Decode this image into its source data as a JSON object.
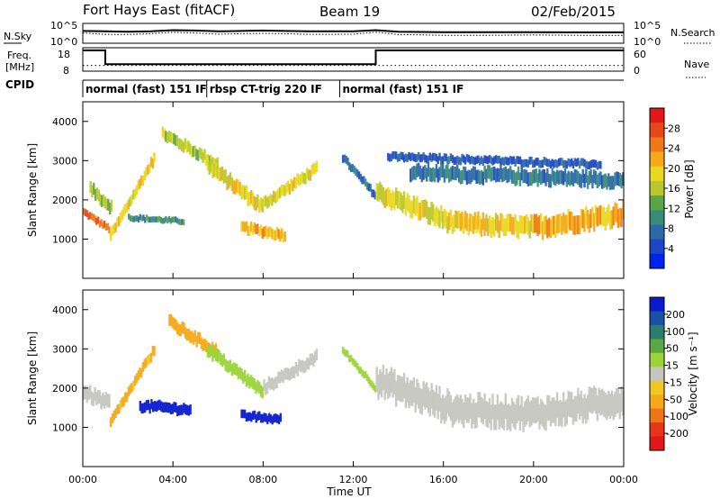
{
  "chart_data": [
    {
      "type": "line",
      "title": "Fort Hays East (fitACF)",
      "subtitle": "Beam 19",
      "date": "02/Feb/2015",
      "panel": "noise",
      "left_label": "N.Sky",
      "right_label": "N.Search",
      "left_ticks": [
        "10^5",
        "10^0"
      ],
      "right_ticks": [
        "10^5",
        "10^0"
      ],
      "x_hours": [
        0,
        1,
        2,
        3,
        4,
        5,
        6,
        7,
        8,
        9,
        10,
        11,
        12,
        13,
        14,
        16,
        18,
        20,
        22,
        24
      ],
      "series": [
        {
          "name": "N.Sky",
          "values": [
            0.62,
            0.6,
            0.58,
            0.6,
            0.66,
            0.64,
            0.6,
            0.62,
            0.64,
            0.62,
            0.6,
            0.6,
            0.6,
            0.66,
            0.58,
            0.56,
            0.56,
            0.56,
            0.55,
            0.55
          ]
        },
        {
          "name": "N.Search",
          "values": [
            0.52,
            0.45,
            0.44,
            0.48,
            0.55,
            0.52,
            0.46,
            0.48,
            0.5,
            0.48,
            0.45,
            0.45,
            0.46,
            0.56,
            0.44,
            0.4,
            0.4,
            0.42,
            0.4,
            0.4
          ]
        }
      ]
    },
    {
      "type": "line",
      "panel": "frequency",
      "left_label_1": "Freq.",
      "left_label_2": "[MHz]",
      "left_ticks": [
        "18",
        "8"
      ],
      "right_ticks": [
        "60",
        "0"
      ],
      "right_label": "Nave",
      "cpid_label": "CPID",
      "freq_segments": [
        {
          "start_h": 0,
          "end_h": 1.0,
          "mhz": 17.6
        },
        {
          "start_h": 1.0,
          "end_h": 13.0,
          "mhz": 10.6
        },
        {
          "start_h": 13.0,
          "end_h": 24,
          "mhz": 17.6
        }
      ],
      "nave_value": 12,
      "modes": [
        {
          "label": "normal (fast) 151 IF",
          "start_h": 0,
          "end_h": 5.5
        },
        {
          "label": "rbsp CT-trig 220 IF",
          "start_h": 5.5,
          "end_h": 11.4
        },
        {
          "label": "normal (fast) 151 IF",
          "start_h": 11.4,
          "end_h": 24
        }
      ]
    },
    {
      "type": "heatmap",
      "panel": "power",
      "ylabel": "Slant Range [km]",
      "ylim": [
        0,
        4500
      ],
      "yticks": [
        1000,
        2000,
        3000,
        4000
      ],
      "colorbar_label": "Power [dB]",
      "colorbar_ticks": [
        "4",
        "8",
        "12",
        "16",
        "20",
        "24",
        "28"
      ],
      "colorbar_colors": [
        "#0022ee",
        "#1e44c8",
        "#2a6aa8",
        "#3a8c78",
        "#5aa548",
        "#b8c82c",
        "#e8d820",
        "#f5a818",
        "#f07818",
        "#e84818",
        "#e01818"
      ],
      "bands": [
        {
          "t0": 0.0,
          "t1": 1.2,
          "r_start": 1700,
          "r_end": 1250,
          "width": 180,
          "value": 26
        },
        {
          "t0": 1.2,
          "t1": 3.2,
          "r_start": 1050,
          "r_end": 3100,
          "width": 250,
          "value": 20
        },
        {
          "t0": 0.3,
          "t1": 1.3,
          "r_start": 2300,
          "r_end": 1800,
          "width": 300,
          "value": 14
        },
        {
          "t0": 3.5,
          "t1": 6.0,
          "r_start": 3700,
          "r_end": 2900,
          "width": 280,
          "value": 16
        },
        {
          "t0": 5.5,
          "t1": 8.0,
          "r_start": 2900,
          "r_end": 1800,
          "width": 350,
          "value": 18
        },
        {
          "t0": 8.0,
          "t1": 10.4,
          "r_start": 1900,
          "r_end": 2800,
          "width": 280,
          "value": 18
        },
        {
          "t0": 7.0,
          "t1": 9.0,
          "r_start": 1300,
          "r_end": 1100,
          "width": 260,
          "value": 22
        },
        {
          "t0": 2.0,
          "t1": 4.5,
          "r_start": 1550,
          "r_end": 1450,
          "width": 150,
          "value": 10
        },
        {
          "t0": 11.5,
          "t1": 13.0,
          "r_start": 3100,
          "r_end": 2100,
          "width": 200,
          "value": 8
        },
        {
          "t0": 13.0,
          "t1": 16.5,
          "r_start": 2200,
          "r_end": 1400,
          "width": 450,
          "value": 18
        },
        {
          "t0": 16.5,
          "t1": 20.0,
          "r_start": 1400,
          "r_end": 1300,
          "width": 450,
          "value": 20
        },
        {
          "t0": 20.0,
          "t1": 24.0,
          "r_start": 1300,
          "r_end": 1650,
          "width": 480,
          "value": 22
        },
        {
          "t0": 14.5,
          "t1": 24.0,
          "r_start": 2700,
          "r_end": 2500,
          "width": 350,
          "value": 8
        },
        {
          "t0": 13.5,
          "t1": 23.0,
          "r_start": 3100,
          "r_end": 2900,
          "width": 200,
          "value": 6
        }
      ]
    },
    {
      "type": "heatmap",
      "panel": "velocity",
      "xlabel": "Time UT",
      "ylabel": "Slant Range [km]",
      "ylim": [
        0,
        4500
      ],
      "yticks": [
        1000,
        2000,
        3000,
        4000
      ],
      "colorbar_label": "Velocity [m s⁻¹]",
      "colorbar_ticks": [
        "200",
        "100",
        "50",
        "15",
        "-15",
        "-50",
        "-100",
        "-200"
      ],
      "colorbar_colors": [
        "#0a1acc",
        "#1a52a8",
        "#2c7e6c",
        "#5aa843",
        "#9ad43a",
        "#c6c6c0",
        "#f0c820",
        "#f5a818",
        "#f07418",
        "#e83418",
        "#e01818"
      ],
      "xticks": [
        "00:00",
        "04:00",
        "08:00",
        "12:00",
        "16:00",
        "20:00",
        "00:00"
      ],
      "bands": [
        {
          "t0": 0.0,
          "t1": 1.2,
          "r_start": 1900,
          "r_end": 1600,
          "width": 350,
          "value": -5
        },
        {
          "t0": 1.2,
          "t1": 3.2,
          "r_start": 1100,
          "r_end": 3000,
          "width": 250,
          "value": -70
        },
        {
          "t0": 2.5,
          "t1": 4.8,
          "r_start": 1550,
          "r_end": 1450,
          "width": 260,
          "value": 220
        },
        {
          "t0": 3.8,
          "t1": 6.0,
          "r_start": 3700,
          "r_end": 2900,
          "width": 300,
          "value": -80
        },
        {
          "t0": 5.5,
          "t1": 8.0,
          "r_start": 3000,
          "r_end": 1900,
          "width": 300,
          "value": 40
        },
        {
          "t0": 8.0,
          "t1": 10.4,
          "r_start": 2000,
          "r_end": 2800,
          "width": 300,
          "value": 0
        },
        {
          "t0": 7.0,
          "t1": 8.8,
          "r_start": 1300,
          "r_end": 1200,
          "width": 220,
          "value": 210
        },
        {
          "t0": 11.5,
          "t1": 13.0,
          "r_start": 3000,
          "r_end": 2000,
          "width": 180,
          "value": 40
        },
        {
          "t0": 13.0,
          "t1": 16.5,
          "r_start": 2200,
          "r_end": 1450,
          "width": 650,
          "value": 0
        },
        {
          "t0": 16.5,
          "t1": 20.0,
          "r_start": 1450,
          "r_end": 1350,
          "width": 650,
          "value": 0
        },
        {
          "t0": 20.0,
          "t1": 24.0,
          "r_start": 1350,
          "r_end": 1700,
          "width": 650,
          "value": 0
        }
      ]
    }
  ]
}
